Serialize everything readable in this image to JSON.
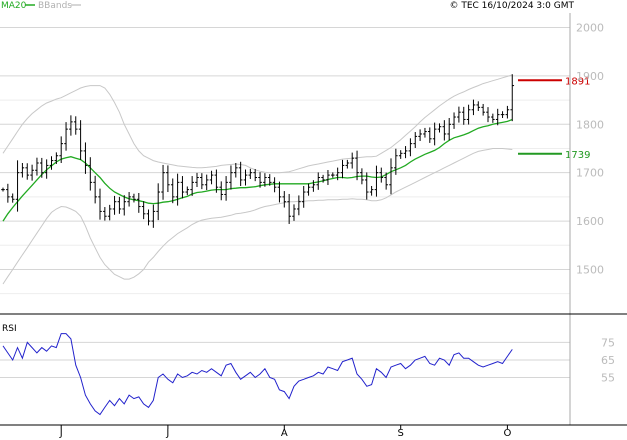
{
  "header": {
    "ma_label": "MA20",
    "bb_label": "BBands",
    "copyright": "© TEC 16/10/2024 3:0 GMT"
  },
  "colors": {
    "ma": "#22aa22",
    "bbands": "#c8c8c8",
    "bars": "#000000",
    "rsi": "#2222cc",
    "resistance": "#cc0000",
    "support": "#229922",
    "grid": "#d6d6d6",
    "frame": "#aaaaaa"
  },
  "chart_data": [
    {
      "type": "ohlc",
      "panel": "price",
      "y_ticks": [
        "2000",
        "1900",
        "1800",
        "1700",
        "1600",
        "1500"
      ],
      "ylim": [
        1410,
        2030
      ],
      "x_ticks": [
        "J",
        "J",
        "A",
        "S",
        "O"
      ],
      "x_tick_index": [
        12,
        34,
        58,
        82,
        104
      ],
      "levels": [
        {
          "label": "1891",
          "value": 1891,
          "color": "#cc0000"
        },
        {
          "label": "1739",
          "value": 1739,
          "color": "#229922"
        }
      ],
      "close": [
        1665,
        1650,
        1645,
        1700,
        1710,
        1695,
        1705,
        1720,
        1700,
        1715,
        1725,
        1735,
        1760,
        1790,
        1805,
        1790,
        1745,
        1715,
        1680,
        1650,
        1620,
        1610,
        1625,
        1640,
        1625,
        1640,
        1650,
        1645,
        1630,
        1615,
        1600,
        1620,
        1660,
        1700,
        1675,
        1650,
        1680,
        1660,
        1665,
        1680,
        1690,
        1675,
        1685,
        1695,
        1670,
        1655,
        1680,
        1700,
        1710,
        1685,
        1695,
        1700,
        1690,
        1680,
        1690,
        1680,
        1670,
        1650,
        1640,
        1610,
        1625,
        1640,
        1660,
        1670,
        1675,
        1690,
        1685,
        1695,
        1695,
        1700,
        1715,
        1720,
        1730,
        1700,
        1685,
        1660,
        1665,
        1700,
        1690,
        1675,
        1710,
        1735,
        1740,
        1745,
        1760,
        1775,
        1780,
        1785,
        1770,
        1790,
        1795,
        1780,
        1800,
        1815,
        1825,
        1810,
        1830,
        1840,
        1835,
        1825,
        1815,
        1810,
        1820,
        1820,
        1830,
        1880
      ],
      "ma20": [
        1600,
        1615,
        1628,
        1640,
        1652,
        1663,
        1674,
        1685,
        1696,
        1706,
        1714,
        1722,
        1728,
        1731,
        1733,
        1730,
        1727,
        1720,
        1710,
        1700,
        1690,
        1678,
        1668,
        1660,
        1655,
        1650,
        1646,
        1644,
        1642,
        1640,
        1637,
        1636,
        1637,
        1639,
        1640,
        1642,
        1645,
        1648,
        1651,
        1656,
        1659,
        1660,
        1662,
        1664,
        1665,
        1665,
        1665,
        1667,
        1668,
        1669,
        1669,
        1670,
        1671,
        1673,
        1675,
        1676,
        1677,
        1677,
        1677,
        1677,
        1677,
        1677,
        1677,
        1677,
        1679,
        1681,
        1683,
        1686,
        1688,
        1690,
        1690,
        1689,
        1690,
        1692,
        1693,
        1693,
        1691,
        1690,
        1691,
        1696,
        1702,
        1706,
        1710,
        1715,
        1722,
        1728,
        1733,
        1738,
        1742,
        1746,
        1752,
        1760,
        1767,
        1772,
        1775,
        1778,
        1782,
        1787,
        1792,
        1795,
        1797,
        1800,
        1802,
        1804,
        1806,
        1810
      ],
      "bb_upper": [
        1740,
        1755,
        1770,
        1785,
        1800,
        1812,
        1822,
        1830,
        1838,
        1844,
        1848,
        1852,
        1855,
        1860,
        1865,
        1870,
        1875,
        1878,
        1880,
        1880,
        1880,
        1875,
        1862,
        1845,
        1825,
        1800,
        1780,
        1760,
        1745,
        1735,
        1730,
        1725,
        1722,
        1720,
        1718,
        1716,
        1714,
        1713,
        1712,
        1711,
        1710,
        1710,
        1711,
        1712,
        1713,
        1715,
        1716,
        1717,
        1718,
        1717,
        1715,
        1710,
        1706,
        1703,
        1701,
        1700,
        1700,
        1700,
        1701,
        1702,
        1705,
        1708,
        1711,
        1714,
        1716,
        1718,
        1720,
        1722,
        1724,
        1726,
        1728,
        1729,
        1730,
        1731,
        1732,
        1733,
        1733,
        1734,
        1740,
        1746,
        1752,
        1760,
        1768,
        1777,
        1786,
        1795,
        1805,
        1814,
        1822,
        1830,
        1838,
        1845,
        1852,
        1858,
        1863,
        1867,
        1872,
        1876,
        1880,
        1884,
        1887,
        1890,
        1893,
        1896,
        1899,
        1902
      ],
      "bb_lower": [
        1470,
        1485,
        1500,
        1515,
        1530,
        1545,
        1560,
        1575,
        1590,
        1605,
        1618,
        1625,
        1630,
        1629,
        1625,
        1620,
        1610,
        1590,
        1565,
        1545,
        1525,
        1510,
        1500,
        1490,
        1485,
        1480,
        1480,
        1484,
        1491,
        1500,
        1515,
        1525,
        1537,
        1548,
        1558,
        1566,
        1574,
        1580,
        1586,
        1593,
        1598,
        1602,
        1604,
        1606,
        1607,
        1608,
        1610,
        1612,
        1615,
        1616,
        1618,
        1620,
        1623,
        1627,
        1630,
        1632,
        1634,
        1636,
        1638,
        1640,
        1640,
        1641,
        1641,
        1642,
        1642,
        1643,
        1643,
        1644,
        1644,
        1644,
        1645,
        1645,
        1646,
        1645,
        1645,
        1644,
        1642,
        1642,
        1644,
        1648,
        1654,
        1660,
        1665,
        1670,
        1675,
        1680,
        1685,
        1690,
        1695,
        1700,
        1705,
        1710,
        1715,
        1720,
        1725,
        1730,
        1735,
        1740,
        1744,
        1746,
        1748,
        1750,
        1750,
        1750,
        1749,
        1748
      ]
    },
    {
      "type": "line",
      "panel": "rsi",
      "name": "RSI",
      "y_ticks": [
        "75",
        "65",
        "55"
      ],
      "ylim": [
        28,
        90
      ],
      "values": [
        73,
        69,
        65,
        72,
        66,
        75,
        72,
        69,
        72,
        70,
        73,
        72,
        80,
        80,
        77,
        62,
        55,
        45,
        40,
        36,
        34,
        38,
        42,
        39,
        43,
        40,
        45,
        43,
        44,
        40,
        38,
        42,
        55,
        57,
        54,
        52,
        57,
        55,
        56,
        58,
        57,
        59,
        58,
        60,
        58,
        56,
        62,
        63,
        58,
        54,
        56,
        58,
        55,
        57,
        60,
        55,
        54,
        48,
        47,
        43,
        50,
        53,
        54,
        55,
        56,
        58,
        57,
        61,
        60,
        59,
        64,
        65,
        66,
        57,
        54,
        50,
        51,
        60,
        58,
        55,
        61,
        62,
        63,
        60,
        62,
        65,
        66,
        67,
        63,
        62,
        66,
        65,
        62,
        68,
        69,
        66,
        66,
        64,
        62,
        61,
        62,
        63,
        64,
        63,
        67,
        71
      ]
    }
  ]
}
